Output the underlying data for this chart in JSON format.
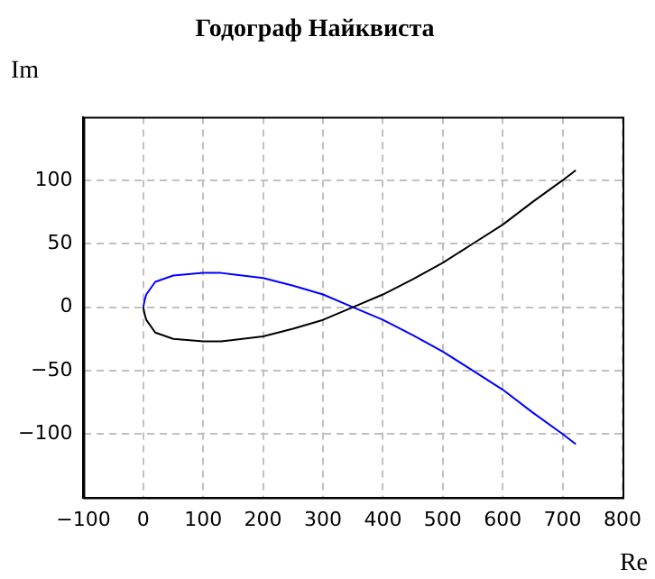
{
  "chart_data": {
    "type": "line",
    "title": "Годограф Найквиста",
    "xlabel": "Re",
    "ylabel": "Im",
    "xlim": [
      -100,
      800
    ],
    "xticks": [
      -100,
      0,
      100,
      200,
      300,
      400,
      500,
      600,
      700,
      800
    ],
    "ylim": [
      -150,
      150
    ],
    "yticks": [
      -100,
      -50,
      0,
      50,
      100
    ],
    "grid": true,
    "marker": "none",
    "series": [
      {
        "color": "#000000",
        "x": [
          0,
          2,
          5,
          20,
          50,
          100,
          130,
          200,
          250,
          300,
          350,
          400,
          450,
          500,
          550,
          600,
          650,
          700,
          722
        ],
        "values": [
          0,
          -5,
          -10,
          -20,
          -25,
          -27,
          -27,
          -23,
          -17,
          -10,
          0,
          10,
          22,
          35,
          50,
          65,
          83,
          100,
          108
        ]
      },
      {
        "color": "#0000ff",
        "x": [
          0,
          2,
          5,
          20,
          50,
          100,
          130,
          200,
          250,
          300,
          350,
          400,
          450,
          500,
          550,
          600,
          650,
          700,
          722
        ],
        "values": [
          0,
          5,
          10,
          20,
          25,
          27,
          27,
          23,
          17,
          10,
          0,
          -10,
          -22,
          -35,
          -50,
          -65,
          -83,
          -100,
          -108
        ]
      }
    ]
  }
}
